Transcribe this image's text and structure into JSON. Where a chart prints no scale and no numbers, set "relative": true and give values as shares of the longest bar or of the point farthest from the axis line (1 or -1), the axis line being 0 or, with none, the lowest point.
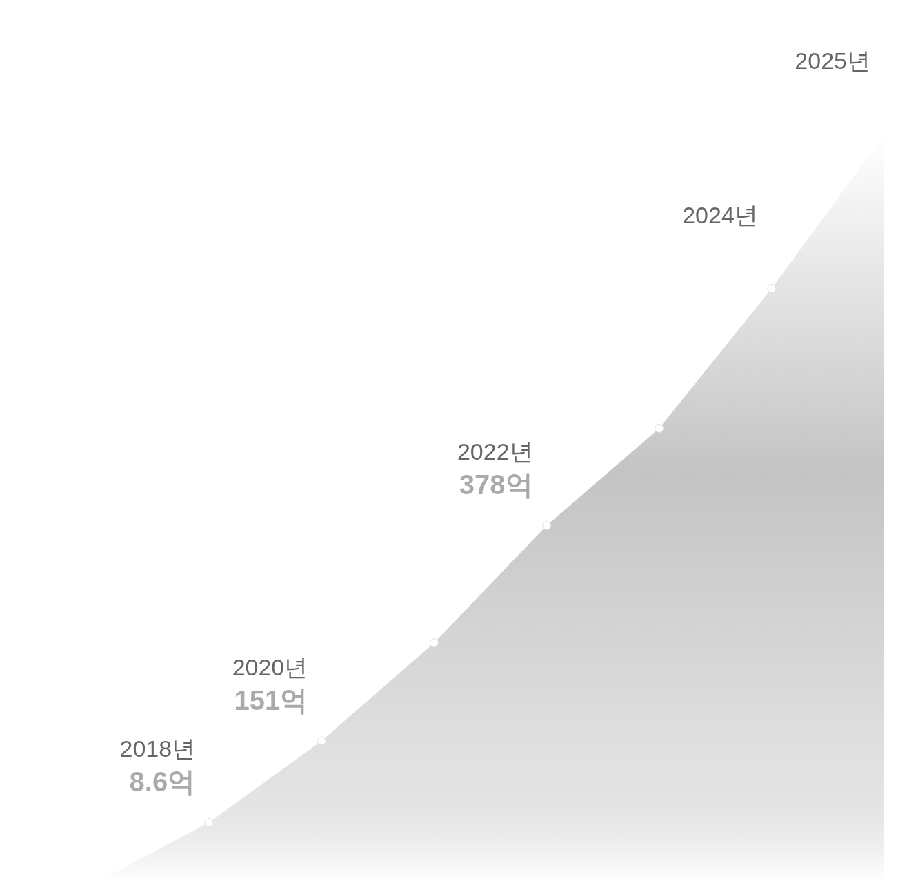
{
  "chart_data": {
    "type": "area",
    "relative": true,
    "color": "#c4c4c4",
    "marker": "circle",
    "categories": [
      null,
      null,
      null,
      null,
      null,
      null,
      null,
      null
    ],
    "values": [
      0,
      0.08,
      0.189,
      0.32,
      0.477,
      0.607,
      0.794,
      1
    ],
    "annotations": [
      "2018년",
      "8.6억",
      "2020년",
      "151억",
      "2022년",
      "378억",
      "2024년",
      "2025년"
    ]
  }
}
